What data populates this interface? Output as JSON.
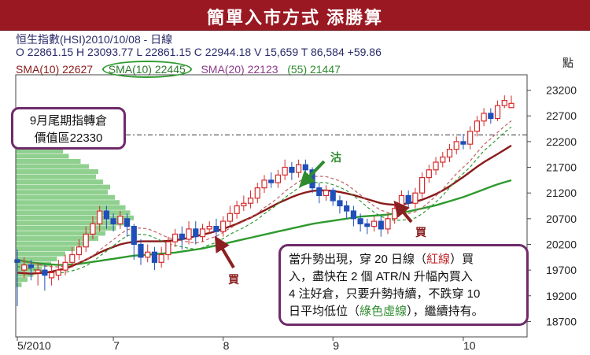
{
  "banner": {
    "title": "簡單入市方式 添勝算"
  },
  "header": {
    "line1": "恒生指數(HSI)2010/10/08 - 日線",
    "line2": "O 22861.15 H 23093.77 L 22861.15 C 22944.18 V 15,659 T 86,584 +59.86",
    "sma10_red": "SMA(10) 22627",
    "sma10_green": "SMA(10) 22445",
    "sma20": "SMA(20) 22123",
    "sma55": "(55) 21447"
  },
  "callouts": {
    "left_line1": "9月尾期指轉倉",
    "left_line2": "價值區22330",
    "main_a": "當升勢出現，穿 20 日線",
    "main_b": "紅線",
    "main_c": "買",
    "main_d": "入，盡快在 2 個 ATR/N 升幅內買入",
    "main_e": "4 注好倉，只要升勢持續，不跌穿 10",
    "main_f": "日平均低位",
    "main_g": "綠色虛線",
    "main_h": "，繼續持有。"
  },
  "annotations": {
    "buy1": "買",
    "buy2": "買",
    "tan": "沽"
  },
  "colors": {
    "banner": "#9a1822",
    "bull": "#d42a2a",
    "bear": "#1f4fb8",
    "sma20": "#8b1a1a",
    "sma55": "#2e9a2e",
    "sma10": "#2e9a2e",
    "volume_profile": "#8fd08f",
    "callout_border": "#6f2a6a",
    "arrow_buy": "#8b2020",
    "arrow_sell": "#2e8b2e"
  },
  "chart_data": {
    "type": "candlestick",
    "unit_label": "點",
    "x_labels": [
      "5/2010",
      "7",
      "8",
      "9",
      "10"
    ],
    "ylim": [
      18400,
      23500
    ],
    "y_ticks": [
      18700,
      19200,
      19700,
      20200,
      20700,
      21200,
      21700,
      22200,
      22700,
      23200
    ],
    "reference_line": 22330,
    "candles": [
      [
        19900,
        19850,
        20100,
        19000
      ],
      [
        19700,
        19800,
        19950,
        19550
      ],
      [
        19800,
        19750,
        19900,
        19500
      ],
      [
        19650,
        19700,
        19850,
        19400
      ],
      [
        19700,
        19600,
        19800,
        19300
      ],
      [
        19550,
        19650,
        19800,
        19400
      ],
      [
        19600,
        19700,
        19900,
        19500
      ],
      [
        19700,
        19850,
        20000,
        19600
      ],
      [
        19850,
        20000,
        20150,
        19750
      ],
      [
        20000,
        20150,
        20300,
        19900
      ],
      [
        20150,
        20400,
        20550,
        20050
      ],
      [
        20400,
        20600,
        20750,
        20300
      ],
      [
        20600,
        20850,
        20950,
        20450
      ],
      [
        20850,
        20700,
        20950,
        20500
      ],
      [
        20700,
        20600,
        20800,
        20450
      ],
      [
        20600,
        20750,
        20850,
        20500
      ],
      [
        20700,
        20550,
        20800,
        20350
      ],
      [
        20550,
        20200,
        20600,
        19900
      ],
      [
        20200,
        19950,
        20300,
        19800
      ],
      [
        19950,
        20050,
        20200,
        19850
      ],
      [
        20050,
        19850,
        20150,
        19700
      ],
      [
        19850,
        20000,
        20150,
        19750
      ],
      [
        20000,
        20250,
        20350,
        19900
      ],
      [
        20250,
        20400,
        20500,
        20150
      ],
      [
        20400,
        20300,
        20550,
        20100
      ],
      [
        20300,
        20500,
        20650,
        20200
      ],
      [
        20500,
        20350,
        20650,
        20200
      ],
      [
        20350,
        20500,
        20600,
        20250
      ],
      [
        20500,
        20550,
        20650,
        20400
      ],
      [
        20550,
        20450,
        20700,
        20300
      ],
      [
        20450,
        20650,
        20750,
        20350
      ],
      [
        20650,
        20800,
        20950,
        20550
      ],
      [
        20800,
        20950,
        21050,
        20700
      ],
      [
        20950,
        21000,
        21150,
        20850
      ],
      [
        21000,
        21100,
        21250,
        20900
      ],
      [
        21100,
        21300,
        21400,
        21000
      ],
      [
        21300,
        21450,
        21550,
        21200
      ],
      [
        21450,
        21400,
        21600,
        21300
      ],
      [
        21400,
        21550,
        21650,
        21300
      ],
      [
        21550,
        21700,
        21850,
        21450
      ],
      [
        21700,
        21600,
        21800,
        21450
      ],
      [
        21600,
        21750,
        21850,
        21500
      ],
      [
        21750,
        21650,
        21850,
        21500
      ],
      [
        21650,
        21300,
        21700,
        21200
      ],
      [
        21300,
        21150,
        21400,
        21000
      ],
      [
        21150,
        21250,
        21350,
        21050
      ],
      [
        21250,
        21050,
        21300,
        20950
      ],
      [
        21050,
        20950,
        21150,
        20800
      ],
      [
        20950,
        20850,
        21050,
        20700
      ],
      [
        20850,
        20700,
        20950,
        20550
      ],
      [
        20700,
        20600,
        20800,
        20450
      ],
      [
        20600,
        20550,
        20700,
        20400
      ],
      [
        20550,
        20650,
        20750,
        20450
      ],
      [
        20650,
        20500,
        20750,
        20350
      ],
      [
        20500,
        20700,
        20800,
        20400
      ],
      [
        20700,
        20900,
        21000,
        20600
      ],
      [
        20900,
        21150,
        21250,
        20800
      ],
      [
        21150,
        21000,
        21250,
        20900
      ],
      [
        21000,
        21200,
        21300,
        20900
      ],
      [
        21200,
        21500,
        21600,
        21100
      ],
      [
        21500,
        21650,
        21750,
        21400
      ],
      [
        21650,
        21800,
        21900,
        21550
      ],
      [
        21800,
        21900,
        22000,
        21700
      ],
      [
        21900,
        22050,
        22150,
        21800
      ],
      [
        22050,
        22200,
        22300,
        21950
      ],
      [
        22200,
        22150,
        22350,
        22050
      ],
      [
        22150,
        22400,
        22500,
        22050
      ],
      [
        22400,
        22600,
        22700,
        22300
      ],
      [
        22600,
        22750,
        22850,
        22500
      ],
      [
        22750,
        22650,
        22850,
        22550
      ],
      [
        22650,
        22900,
        23000,
        22600
      ],
      [
        22900,
        23000,
        23100,
        22850
      ],
      [
        22861,
        22944,
        23094,
        22861
      ]
    ],
    "series": [
      {
        "name": "SMA(20)",
        "values": [
          19650,
          19640,
          19630,
          19640,
          19650,
          19670,
          19700,
          19730,
          19780,
          19840,
          19900,
          19970,
          20040,
          20100,
          20150,
          20200,
          20230,
          20250,
          20260,
          20260,
          20260,
          20260,
          20270,
          20280,
          20300,
          20330,
          20360,
          20390,
          20420,
          20460,
          20500,
          20550,
          20600,
          20660,
          20720,
          20790,
          20860,
          20930,
          21000,
          21060,
          21120,
          21170,
          21210,
          21240,
          21250,
          21250,
          21240,
          21220,
          21190,
          21160,
          21120,
          21080,
          21040,
          21000,
          20980,
          20970,
          20980,
          21000,
          21030,
          21070,
          21120,
          21180,
          21250,
          21330,
          21420,
          21510,
          21610,
          21710,
          21800,
          21880,
          21960,
          22040,
          22123
        ]
      },
      {
        "name": "(55)",
        "values": [
          19900,
          19870,
          19850,
          19830,
          19820,
          19810,
          19800,
          19800,
          19810,
          19820,
          19840,
          19860,
          19880,
          19900,
          19920,
          19940,
          19960,
          19980,
          19990,
          20000,
          20010,
          20020,
          20030,
          20040,
          20060,
          20080,
          20100,
          20120,
          20150,
          20180,
          20210,
          20240,
          20270,
          20300,
          20330,
          20360,
          20390,
          20420,
          20450,
          20480,
          20510,
          20540,
          20570,
          20600,
          20620,
          20640,
          20660,
          20680,
          20700,
          20720,
          20740,
          20750,
          20760,
          20770,
          20780,
          20800,
          20820,
          20840,
          20870,
          20900,
          20930,
          20960,
          21000,
          21040,
          21080,
          21120,
          21170,
          21220,
          21270,
          21320,
          21370,
          21410,
          21447
        ]
      }
    ],
    "volume_profile": [
      [
        22400,
        0.05
      ],
      [
        22300,
        0.1
      ],
      [
        22200,
        0.3
      ],
      [
        22100,
        0.35
      ],
      [
        22000,
        0.4
      ],
      [
        21900,
        0.45
      ],
      [
        21800,
        0.55
      ],
      [
        21700,
        0.62
      ],
      [
        21600,
        0.7
      ],
      [
        21500,
        0.68
      ],
      [
        21400,
        0.74
      ],
      [
        21300,
        0.8
      ],
      [
        21200,
        0.78
      ],
      [
        21100,
        0.84
      ],
      [
        21000,
        0.88
      ],
      [
        20900,
        0.93
      ],
      [
        20800,
        0.97
      ],
      [
        20700,
        1.0
      ],
      [
        20600,
        0.95
      ],
      [
        20500,
        0.85
      ],
      [
        20400,
        0.76
      ],
      [
        20300,
        0.7
      ],
      [
        20200,
        0.6
      ],
      [
        20100,
        0.5
      ],
      [
        20000,
        0.42
      ],
      [
        19900,
        0.35
      ],
      [
        19800,
        0.3
      ],
      [
        19700,
        0.22
      ],
      [
        19600,
        0.15
      ],
      [
        19500,
        0.1
      ],
      [
        19400,
        0.05
      ]
    ]
  }
}
